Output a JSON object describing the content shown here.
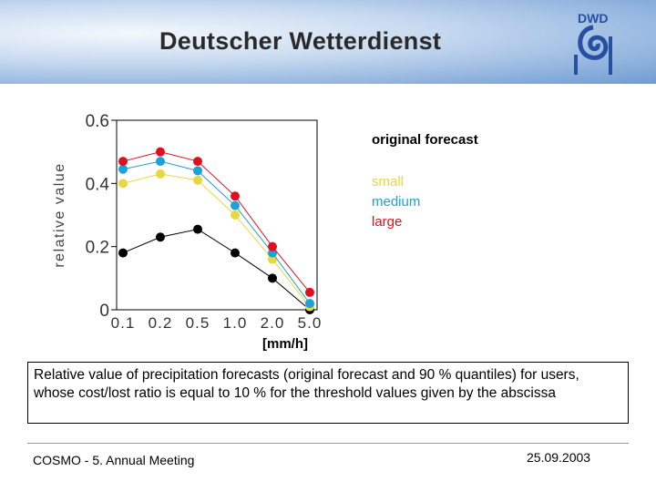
{
  "header": {
    "title": "Deutscher Wetterdienst",
    "logo": "DWD"
  },
  "chart_data": {
    "type": "line",
    "y_label": "relative value",
    "x_label": "[mm/h]",
    "categories": [
      "0.1",
      "0.2",
      "0.5",
      "1.0",
      "2.0",
      "5.0"
    ],
    "series": [
      {
        "name": "original forecast",
        "color": "#000000",
        "values": [
          0.18,
          0.23,
          0.255,
          0.18,
          0.1,
          0.0
        ]
      },
      {
        "name": "small",
        "color": "#e8d840",
        "values": [
          0.4,
          0.43,
          0.41,
          0.3,
          0.16,
          0.01
        ]
      },
      {
        "name": "medium",
        "color": "#1ea0d8",
        "values": [
          0.445,
          0.47,
          0.44,
          0.33,
          0.18,
          0.02
        ]
      },
      {
        "name": "large",
        "color": "#e01020",
        "values": [
          0.47,
          0.5,
          0.47,
          0.36,
          0.2,
          0.055
        ]
      }
    ],
    "ylim": [
      0,
      0.6
    ],
    "yticks": [
      0,
      0.2,
      0.4,
      0.6
    ]
  },
  "caption": "Relative value of precipitation forecasts (original forecast and 90 % quantiles) for users, whose cost/lost ratio is equal to 10 % for the threshold values given by the abscissa",
  "footer": {
    "left": "COSMO - 5. Annual Meeting",
    "right": "25.09.2003"
  }
}
